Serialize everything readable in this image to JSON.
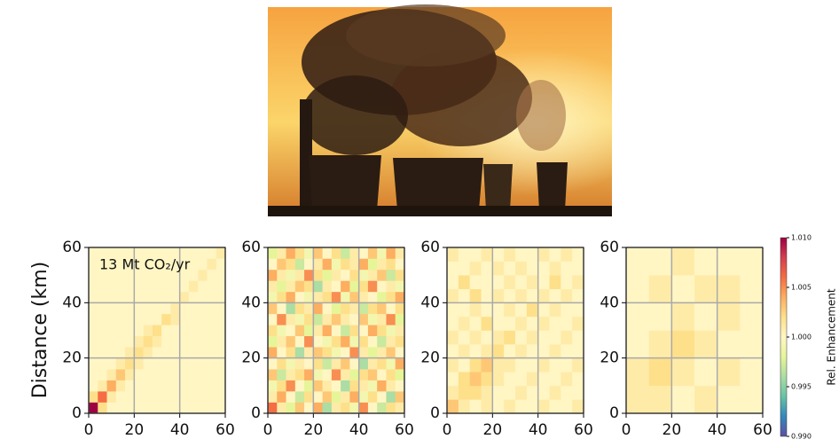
{
  "chart_data": [
    {
      "type": "heatmap",
      "ylabel": "Distance (km)",
      "annotation": "13 Mt CO₂/yr",
      "xlim": [
        0,
        60
      ],
      "ylim": [
        0,
        60
      ],
      "xticks": [
        0,
        20,
        40,
        60
      ],
      "yticks": [
        0,
        20,
        40,
        60
      ],
      "grid": true,
      "values": [
        [
          1.01,
          1.002,
          1,
          1,
          1,
          1,
          1,
          1,
          1,
          1,
          1,
          1,
          1,
          1,
          1
        ],
        [
          1.002,
          1.006,
          1.001,
          1,
          1,
          1,
          1,
          1,
          1,
          1,
          1,
          1,
          1,
          1,
          1
        ],
        [
          1,
          1.001,
          1.004,
          1.001,
          1,
          1,
          1,
          1,
          1,
          1,
          1,
          1,
          1,
          1,
          1
        ],
        [
          1,
          1,
          1.001,
          1.003,
          1.001,
          1,
          1,
          1,
          1,
          1,
          1,
          1,
          1,
          1,
          1
        ],
        [
          1,
          1,
          1,
          1.001,
          1.002,
          1.001,
          1,
          1,
          1,
          1,
          1,
          1,
          1,
          1,
          1
        ],
        [
          1,
          1,
          1,
          1,
          1.001,
          1.002,
          1.001,
          1,
          1,
          1,
          1,
          1,
          1,
          1,
          1
        ],
        [
          1,
          1,
          1,
          1,
          1,
          1.001,
          1.002,
          1.001,
          1,
          1,
          1,
          1,
          1,
          1,
          1
        ],
        [
          1,
          1,
          1,
          1,
          1,
          1,
          1.001,
          1.002,
          1,
          1,
          1,
          1,
          1,
          1,
          1
        ],
        [
          1,
          1,
          1,
          1,
          1,
          1,
          1,
          1,
          1.002,
          1.001,
          1,
          1,
          1,
          1,
          1
        ],
        [
          1,
          1,
          1,
          1,
          1,
          1,
          1,
          1,
          1,
          1.001,
          1,
          1,
          1,
          1,
          1
        ],
        [
          1,
          1,
          1,
          1,
          1,
          1,
          1,
          1,
          1,
          1,
          1.001,
          1,
          1,
          1,
          1
        ],
        [
          1,
          1,
          1,
          1,
          1,
          1,
          1,
          1,
          1,
          1,
          1,
          1.001,
          1,
          1,
          1
        ],
        [
          1,
          1,
          1,
          1,
          1,
          1,
          1,
          1,
          1,
          1,
          1,
          1,
          1.001,
          1,
          1
        ],
        [
          1,
          1,
          1,
          1,
          1,
          1,
          1,
          1,
          1,
          1,
          1,
          1,
          1,
          1.001,
          1
        ],
        [
          1,
          1,
          1,
          1,
          1,
          1,
          1,
          1,
          1,
          1,
          1,
          1,
          1,
          1,
          1.001
        ]
      ]
    },
    {
      "type": "heatmap",
      "xlim": [
        0,
        60
      ],
      "ylim": [
        0,
        60
      ],
      "xticks": [
        0,
        20,
        40,
        60
      ],
      "yticks": [
        0,
        20,
        40,
        60
      ],
      "grid": true,
      "values": [
        [
          1.006,
          1.001,
          0.998,
          1.003,
          1,
          1.004,
          0.996,
          1.001,
          1.002,
          0.999,
          1.005,
          1,
          0.997,
          1.002,
          1.001
        ],
        [
          1.001,
          1.004,
          1,
          0.997,
          1.002,
          1,
          1.003,
          0.998,
          1.001,
          1.004,
          0.999,
          1.002,
          1,
          0.996,
          1.003
        ],
        [
          0.999,
          1.002,
          1.005,
          1,
          0.998,
          1.003,
          1.001,
          1,
          0.996,
          1.002,
          1.001,
          0.999,
          1.004,
          1.001,
          1
        ],
        [
          1.003,
          0.997,
          1.001,
          1.002,
          1.004,
          0.999,
          1,
          1.005,
          1.001,
          0.998,
          1.002,
          1.003,
          1,
          1.002,
          0.998
        ],
        [
          1,
          1.002,
          0.999,
          1.001,
          1,
          1.002,
          0.997,
          1.001,
          1.003,
          1,
          0.996,
          1.001,
          1.002,
          0.999,
          1.004
        ],
        [
          1.004,
          1,
          1.002,
          0.996,
          1.001,
          1.003,
          1.002,
          0.999,
          1,
          1.005,
          1.001,
          0.998,
          1.001,
          1.003,
          1
        ],
        [
          0.998,
          1.001,
          1.003,
          1,
          1.005,
          1,
          0.999,
          1.002,
          1.004,
          0.999,
          1.002,
          1,
          0.997,
          1.001,
          1.002
        ],
        [
          1.002,
          0.999,
          1,
          1.003,
          0.998,
          1.001,
          1.004,
          1,
          0.997,
          1.002,
          1,
          1.004,
          1.002,
          0.999,
          1.001
        ],
        [
          1,
          1.005,
          1.001,
          0.999,
          1.002,
          0.997,
          1.001,
          1.003,
          1.001,
          1,
          1.003,
          0.999,
          1.001,
          1.005,
          0.998
        ],
        [
          1.003,
          1,
          0.996,
          1.002,
          1.001,
          1.004,
          1,
          0.998,
          1.002,
          1.001,
          0.997,
          1.002,
          1.003,
          1,
          1.002
        ],
        [
          0.999,
          1.002,
          1.004,
          1,
          0.999,
          1.001,
          1.002,
          1.005,
          0.999,
          1.003,
          1.001,
          1,
          0.998,
          1.002,
          1.004
        ],
        [
          1.001,
          0.998,
          1.001,
          1.003,
          1.002,
          0.996,
          1.001,
          1,
          1.004,
          0.998,
          1.002,
          1.005,
          1,
          1.001,
          0.999
        ],
        [
          1.004,
          1.001,
          0.999,
          1.001,
          1.005,
          1.002,
          0.998,
          1.001,
          1,
          1.002,
          0.999,
          1.001,
          1.003,
          0.997,
          1.002
        ],
        [
          1,
          1.003,
          1.002,
          0.997,
          1,
          1.001,
          1.004,
          0.999,
          1.002,
          1.001,
          1.004,
          0.998,
          1.001,
          1.002,
          1
        ],
        [
          0.998,
          1.001,
          1.004,
          1.002,
          0.999,
          1.003,
          1,
          1.002,
          0.997,
          1.001,
          1,
          1.003,
          0.999,
          1.004,
          1.001
        ]
      ]
    },
    {
      "type": "heatmap",
      "xlim": [
        0,
        60
      ],
      "ylim": [
        0,
        60
      ],
      "xticks": [
        0,
        20,
        40,
        60
      ],
      "yticks": [
        0,
        20,
        40,
        60
      ],
      "grid": true,
      "values": [
        [
          1.003,
          1.001,
          1,
          1.001,
          1,
          1.001,
          1,
          1,
          1.001,
          1,
          1,
          1.001
        ],
        [
          1.001,
          1.002,
          1.002,
          1.001,
          1,
          1,
          1.001,
          1,
          1,
          1.001,
          1,
          1
        ],
        [
          1,
          1.002,
          1.003,
          1.002,
          1.001,
          1,
          1,
          1.001,
          1,
          1,
          1.001,
          1
        ],
        [
          1.001,
          1,
          1.002,
          1.003,
          1.001,
          1.001,
          1,
          1,
          1.001,
          1,
          1,
          1.001
        ],
        [
          1,
          1.001,
          1,
          1.001,
          1.002,
          1,
          1.001,
          1,
          1,
          1.001,
          1,
          1
        ],
        [
          1.001,
          1,
          1.001,
          1,
          1.001,
          1.002,
          1,
          1.001,
          1,
          1,
          1.001,
          1
        ],
        [
          1,
          1.001,
          1,
          1.002,
          1,
          1,
          1.001,
          1,
          1.001,
          1,
          1,
          1.001
        ],
        [
          1,
          1,
          1.001,
          1,
          1,
          1.001,
          1,
          1.002,
          1,
          1.001,
          1,
          1
        ],
        [
          1.001,
          1,
          1.002,
          1,
          1.001,
          1,
          1.001,
          1,
          1.001,
          1,
          1.001,
          1
        ],
        [
          1,
          1.002,
          1,
          1,
          1,
          1.001,
          1,
          1.001,
          1,
          1.002,
          1,
          1.001
        ],
        [
          1,
          1,
          1.001,
          1,
          1.001,
          1,
          1.001,
          1,
          1,
          1.001,
          1,
          1
        ],
        [
          1.001,
          1,
          1,
          1.001,
          1,
          1.001,
          1,
          1,
          1.001,
          1,
          1.001,
          1
        ]
      ]
    },
    {
      "type": "heatmap",
      "xlim": [
        0,
        60
      ],
      "ylim": [
        0,
        60
      ],
      "xticks": [
        0,
        20,
        40,
        60
      ],
      "yticks": [
        0,
        20,
        40,
        60
      ],
      "grid": true,
      "values": [
        [
          1.001,
          1.001,
          1,
          1.001,
          1,
          1
        ],
        [
          1.001,
          1.002,
          1.001,
          1,
          1.001,
          1
        ],
        [
          1,
          1.001,
          1.002,
          1.001,
          1,
          1
        ],
        [
          1,
          1,
          1.001,
          1,
          1.001,
          1
        ],
        [
          1,
          1.001,
          1,
          1.001,
          1.001,
          1
        ],
        [
          1,
          1,
          1.001,
          1,
          1,
          1
        ]
      ]
    }
  ],
  "colorbar": {
    "label": "Rel. Enhancement",
    "lim": [
      0.99,
      1.01
    ],
    "ticks": [
      {
        "value": 0.99,
        "label": "0.990"
      },
      {
        "value": 0.995,
        "label": "0.995"
      },
      {
        "value": 1,
        "label": "1.000"
      },
      {
        "value": 1.005,
        "label": "1.005"
      },
      {
        "value": 1.01,
        "label": "1.010"
      }
    ],
    "colors": [
      "#5e4fa2",
      "#3288bd",
      "#66c2a5",
      "#abdda4",
      "#e6f598",
      "#fff6c4",
      "#fee08b",
      "#fdae61",
      "#f46d43",
      "#d53e4f",
      "#9e0142"
    ]
  }
}
